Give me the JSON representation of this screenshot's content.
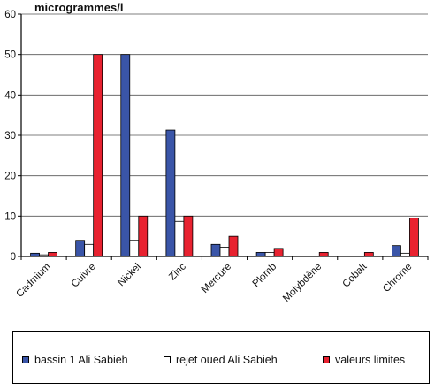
{
  "chart_data": {
    "type": "bar",
    "ylabel": "microgrammes/l",
    "ylim": [
      0,
      60
    ],
    "yticks": [
      0,
      10,
      20,
      30,
      40,
      50,
      60
    ],
    "grid": true,
    "legend_placement": "bottom",
    "categories": [
      "Cadmium",
      "Cuivre",
      "Nickel",
      "Zinc",
      "Mercure",
      "Plomb",
      "Molybdène",
      "Cobalt",
      "Chrome"
    ],
    "series": [
      {
        "name": "bassin 1 Ali Sabieh",
        "color": "#3a55a8",
        "values": [
          0.8,
          4,
          50,
          31.3,
          3,
          1,
          0,
          0,
          2.7
        ]
      },
      {
        "name": "rejet oued Ali Sabieh",
        "color": "#ffffff",
        "values": [
          0.4,
          3,
          4,
          8.7,
          2.3,
          1,
          0,
          0,
          0.8
        ]
      },
      {
        "name": "valeurs limites",
        "color": "#e82230",
        "values": [
          1,
          50,
          10,
          10,
          5,
          2,
          1,
          1,
          9.5
        ]
      }
    ]
  }
}
